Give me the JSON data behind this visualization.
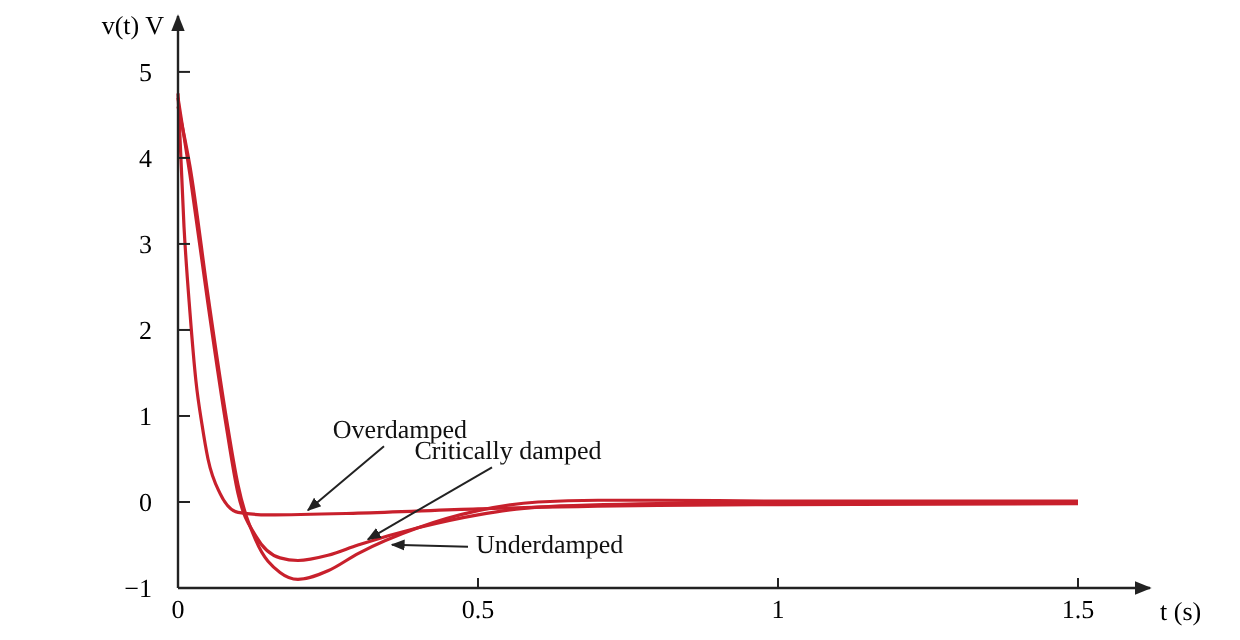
{
  "chart_data": {
    "type": "line",
    "xlabel": "t (s)",
    "ylabel": "v(t) V",
    "xlim": [
      0,
      1.62
    ],
    "ylim": [
      -1,
      5.65
    ],
    "xticks": [
      0,
      0.5,
      1,
      1.5
    ],
    "yticks": [
      -1,
      0,
      1,
      2,
      3,
      4,
      5
    ],
    "grid": false,
    "marker": "none",
    "line_style": "solid",
    "series": [
      {
        "name": "Overdamped",
        "color": "#c8202c",
        "x": [
          0,
          0.01,
          0.02,
          0.03,
          0.04,
          0.05,
          0.07,
          0.1,
          0.15,
          0.3,
          0.5,
          0.8,
          1.0,
          1.5
        ],
        "values": [
          4.75,
          3.2,
          2.2,
          1.4,
          0.9,
          0.5,
          0.1,
          -0.12,
          -0.15,
          -0.13,
          -0.08,
          -0.04,
          -0.03,
          -0.02
        ]
      },
      {
        "name": "Critically damped",
        "color": "#c8202c",
        "x": [
          0,
          0.02,
          0.05,
          0.08,
          0.1,
          0.13,
          0.17,
          0.2,
          0.25,
          0.3,
          0.4,
          0.5,
          0.6,
          0.8,
          1.0,
          1.5
        ],
        "values": [
          4.7,
          3.8,
          2.3,
          0.9,
          0.1,
          -0.4,
          -0.65,
          -0.68,
          -0.62,
          -0.5,
          -0.3,
          -0.15,
          -0.06,
          -0.02,
          -0.01,
          0
        ]
      },
      {
        "name": "Underdamped",
        "color": "#c8202c",
        "x": [
          0,
          0.02,
          0.05,
          0.08,
          0.1,
          0.13,
          0.17,
          0.2,
          0.25,
          0.3,
          0.4,
          0.5,
          0.6,
          0.7,
          0.8,
          1.0,
          1.5
        ],
        "values": [
          4.6,
          3.9,
          2.4,
          1.0,
          0.2,
          -0.45,
          -0.82,
          -0.9,
          -0.8,
          -0.6,
          -0.3,
          -0.1,
          0.0,
          0.02,
          0.02,
          0.01,
          0.01
        ]
      }
    ]
  }
}
